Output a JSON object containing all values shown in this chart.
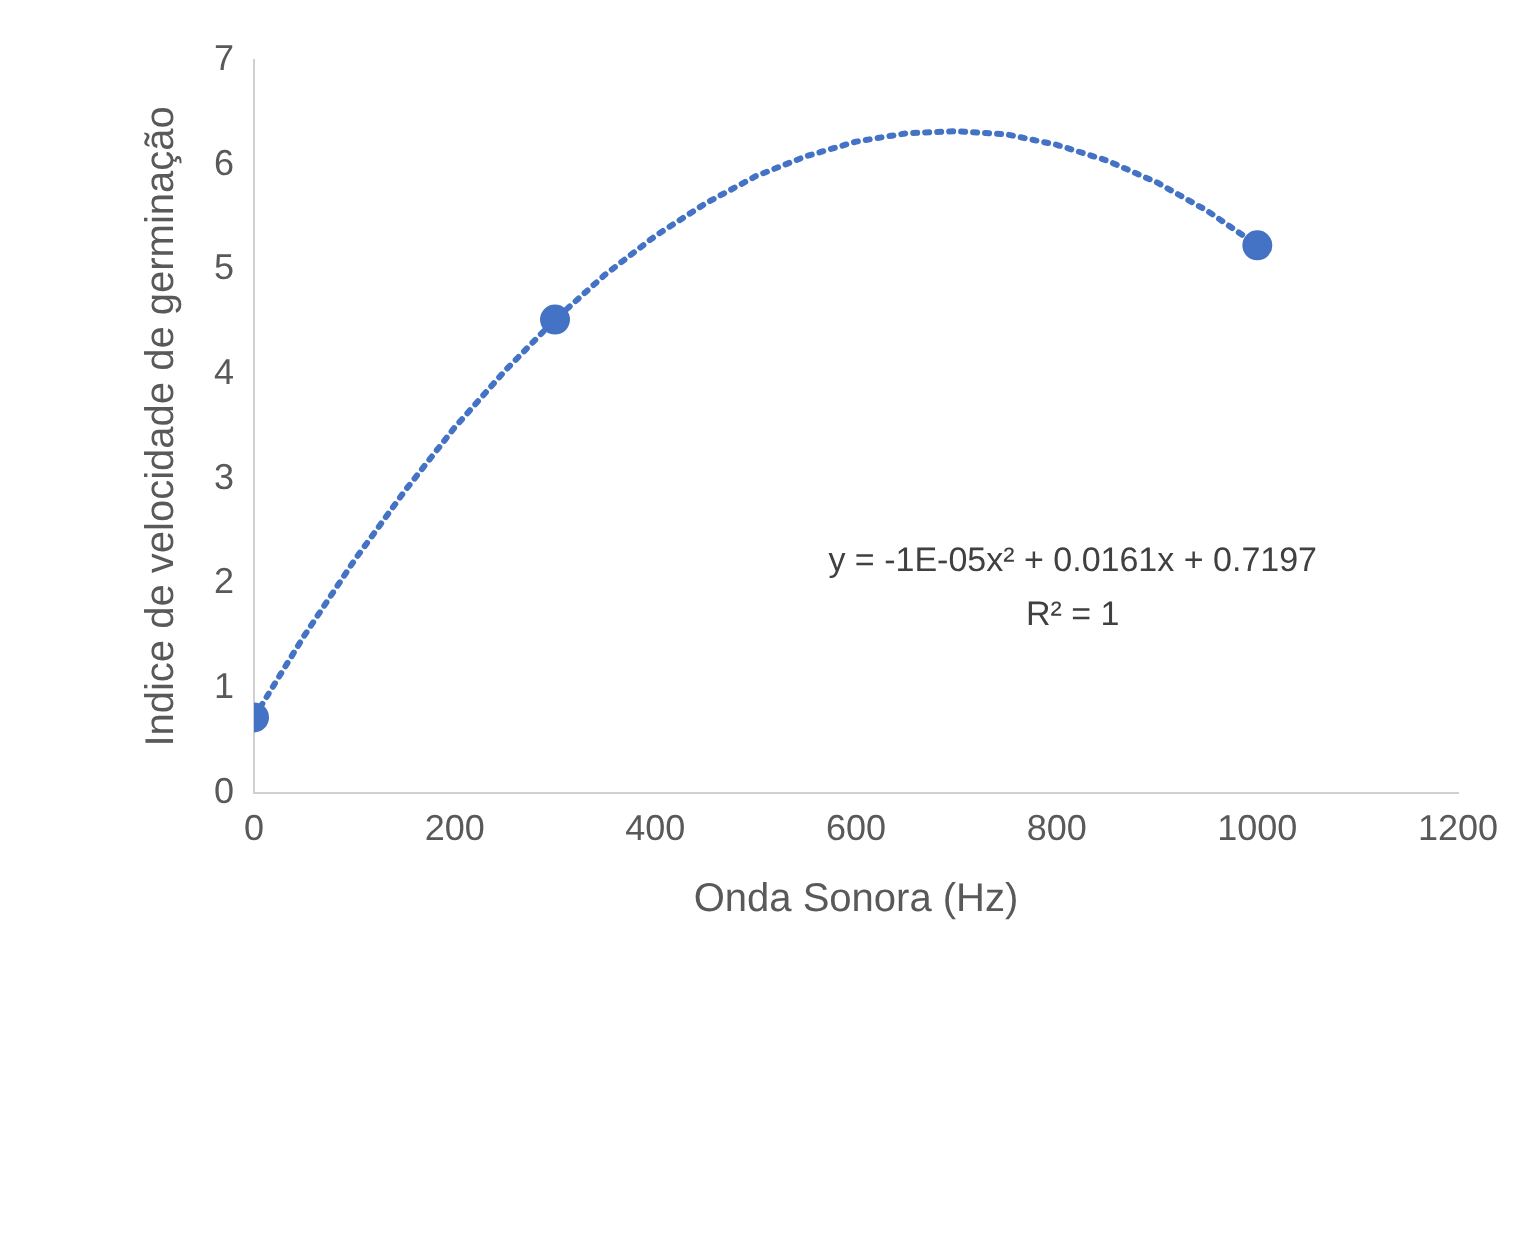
{
  "chart_data": {
    "type": "scatter",
    "xlabel": "Onda Sonora (Hz)",
    "ylabel": "Indice de velocidade de germinação",
    "xlim": [
      0,
      1200
    ],
    "xticks": [
      0,
      200,
      400,
      600,
      800,
      1000,
      1200
    ],
    "ylim": [
      0,
      7
    ],
    "yticks": [
      0,
      1,
      2,
      3,
      4,
      5,
      6,
      7
    ],
    "grid": false,
    "legend": false,
    "series": [
      {
        "color": "#4472c4",
        "marker": "circle",
        "x": [
          0,
          300,
          1000
        ],
        "values": [
          0.72,
          4.52,
          5.23
        ]
      },
      {
        "type": "line",
        "color": "#4472c4",
        "marker": "none",
        "line_style": "dotted",
        "x": [
          0,
          50,
          100,
          150,
          200,
          250,
          300,
          350,
          400,
          450,
          500,
          550,
          600,
          650,
          700,
          750,
          800,
          850,
          900,
          950,
          1000
        ],
        "values": [
          0.72,
          1.5,
          2.22,
          2.88,
          3.49,
          4.03,
          4.52,
          4.95,
          5.32,
          5.63,
          5.89,
          6.08,
          6.22,
          6.3,
          6.32,
          6.29,
          6.19,
          6.04,
          5.83,
          5.56,
          5.23
        ]
      }
    ],
    "annotations": [
      "y = -1E-05x² + 0.0161x + 0.7197",
      "R² = 1"
    ]
  }
}
